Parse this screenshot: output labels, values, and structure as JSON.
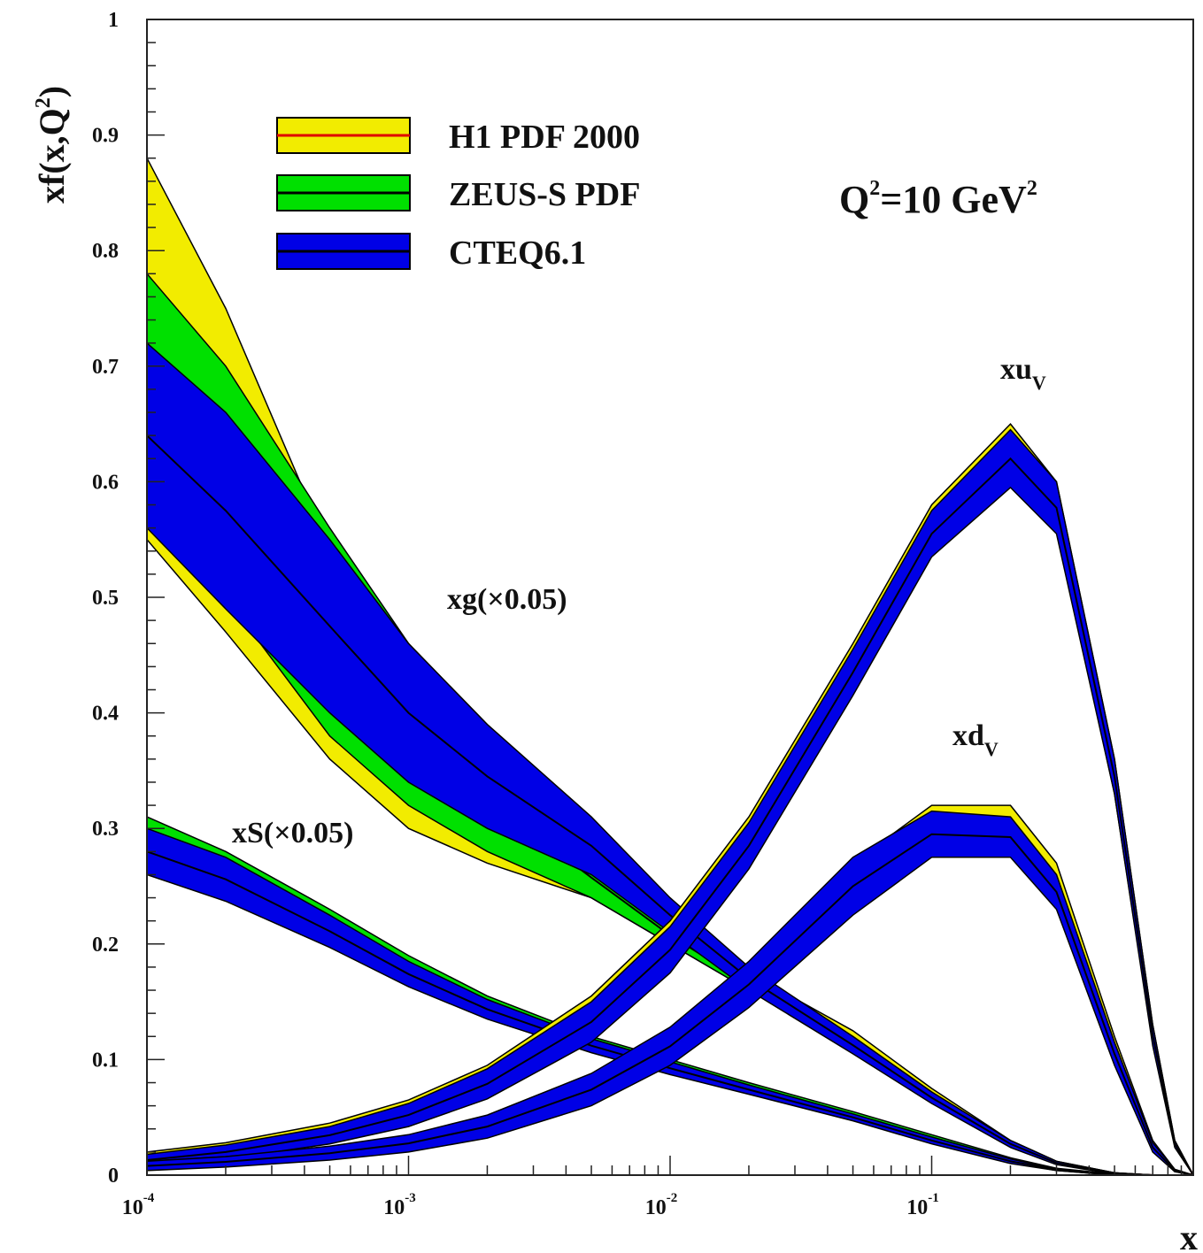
{
  "chart_data": {
    "type": "area",
    "ylabel": "xf(x,Q",
    "ylabel_sup": "2",
    "ylabel_close": ")",
    "xlabel": "x",
    "xscale": "log",
    "xlim": [
      0.0001,
      1
    ],
    "ylim": [
      0,
      1
    ],
    "y_ticks": [
      "0",
      "0.1",
      "0.2",
      "0.3",
      "0.4",
      "0.5",
      "0.6",
      "0.7",
      "0.8",
      "0.9",
      "1"
    ],
    "x_ticks": [
      {
        "base": "10",
        "exp": "-4"
      },
      {
        "base": "10",
        "exp": "-3"
      },
      {
        "base": "10",
        "exp": "-2"
      },
      {
        "base": "10",
        "exp": "-1"
      }
    ],
    "annotation": {
      "prefix": "Q",
      "sup1": "2",
      "mid": "=10 GeV",
      "sup2": "2"
    },
    "legend": [
      {
        "label": "H1 PDF 2000",
        "color": "#f2ec00",
        "line": "#e00000"
      },
      {
        "label": "ZEUS-S PDF",
        "color": "#00e000",
        "line": "#000000"
      },
      {
        "label": "CTEQ6.1",
        "color": "#0000e6",
        "line": "#000000"
      }
    ],
    "curve_labels": [
      {
        "text": "xg(×0.05)"
      },
      {
        "text": "xS(×0.05)"
      },
      {
        "text": "xu",
        "sub": "V"
      },
      {
        "text": "xd",
        "sub": "V"
      }
    ],
    "x": [
      0.0001,
      0.0002,
      0.0005,
      0.001,
      0.002,
      0.005,
      0.01,
      0.02,
      0.05,
      0.1,
      0.2,
      0.3,
      0.5,
      0.7,
      0.85,
      1
    ],
    "series": [
      {
        "curve": "xg(×0.05)",
        "band": "H1 PDF 2000",
        "upper": [
          0.88,
          0.75,
          0.54,
          0.44,
          0.35,
          0.27,
          0.22,
          0.175,
          0.125,
          0.075,
          0.03,
          0.012,
          0.002,
          0.0,
          0.0,
          0.0
        ],
        "lower": [
          0.55,
          0.47,
          0.36,
          0.3,
          0.27,
          0.24,
          0.2,
          0.16,
          0.11,
          0.065,
          0.025,
          0.01,
          0.001,
          0.0,
          0.0,
          0.0
        ]
      },
      {
        "curve": "xg(×0.05)",
        "band": "ZEUS-S PDF",
        "upper": [
          0.78,
          0.7,
          0.56,
          0.46,
          0.37,
          0.275,
          0.215,
          0.17,
          0.12,
          0.072,
          0.028,
          0.011,
          0.002,
          0.0,
          0.0,
          0.0
        ],
        "lower": [
          0.58,
          0.5,
          0.38,
          0.32,
          0.28,
          0.24,
          0.2,
          0.16,
          0.112,
          0.066,
          0.025,
          0.01,
          0.001,
          0.0,
          0.0,
          0.0
        ]
      },
      {
        "curve": "xg(×0.05)",
        "band": "CTEQ6.1",
        "upper": [
          0.72,
          0.66,
          0.55,
          0.46,
          0.39,
          0.31,
          0.24,
          0.18,
          0.12,
          0.072,
          0.03,
          0.012,
          0.002,
          0.0,
          0.0,
          0.0
        ],
        "lower": [
          0.56,
          0.49,
          0.4,
          0.34,
          0.3,
          0.26,
          0.21,
          0.16,
          0.105,
          0.062,
          0.024,
          0.009,
          0.001,
          0.0,
          0.0,
          0.0
        ]
      },
      {
        "curve": "xS(×0.05)",
        "band": "ZEUS-S PDF",
        "upper": [
          0.31,
          0.28,
          0.23,
          0.19,
          0.155,
          0.12,
          0.1,
          0.08,
          0.055,
          0.035,
          0.015,
          0.006,
          0.001,
          0.0,
          0.0,
          0.0
        ],
        "lower": [
          0.27,
          0.245,
          0.205,
          0.17,
          0.14,
          0.11,
          0.09,
          0.072,
          0.048,
          0.028,
          0.011,
          0.004,
          0.0,
          0.0,
          0.0,
          0.0
        ]
      },
      {
        "curve": "xS(×0.05)",
        "band": "CTEQ6.1",
        "upper": [
          0.3,
          0.275,
          0.225,
          0.185,
          0.152,
          0.118,
          0.098,
          0.078,
          0.053,
          0.033,
          0.014,
          0.005,
          0.001,
          0.0,
          0.0,
          0.0
        ],
        "lower": [
          0.26,
          0.237,
          0.197,
          0.163,
          0.135,
          0.106,
          0.087,
          0.07,
          0.047,
          0.027,
          0.01,
          0.004,
          0.0,
          0.0,
          0.0,
          0.0
        ]
      },
      {
        "curve": "xu_V",
        "band": "H1 PDF 2000",
        "upper": [
          0.02,
          0.028,
          0.045,
          0.065,
          0.095,
          0.155,
          0.22,
          0.31,
          0.46,
          0.58,
          0.65,
          0.6,
          0.36,
          0.13,
          0.03,
          0.0
        ],
        "lower": [
          0.01,
          0.016,
          0.03,
          0.045,
          0.07,
          0.12,
          0.18,
          0.27,
          0.42,
          0.54,
          0.6,
          0.56,
          0.33,
          0.115,
          0.025,
          0.0
        ]
      },
      {
        "curve": "xu_V",
        "band": "CTEQ6.1",
        "upper": [
          0.018,
          0.026,
          0.042,
          0.062,
          0.092,
          0.15,
          0.215,
          0.305,
          0.455,
          0.575,
          0.645,
          0.6,
          0.36,
          0.13,
          0.03,
          0.0
        ],
        "lower": [
          0.008,
          0.014,
          0.027,
          0.042,
          0.066,
          0.115,
          0.175,
          0.265,
          0.415,
          0.535,
          0.595,
          0.555,
          0.33,
          0.112,
          0.024,
          0.0
        ]
      },
      {
        "curve": "xd_V",
        "band": "H1 PDF 2000",
        "upper": [
          0.012,
          0.016,
          0.024,
          0.034,
          0.05,
          0.085,
          0.125,
          0.18,
          0.27,
          0.32,
          0.32,
          0.27,
          0.12,
          0.03,
          0.005,
          0.0
        ],
        "lower": [
          0.006,
          0.009,
          0.016,
          0.024,
          0.036,
          0.065,
          0.1,
          0.15,
          0.235,
          0.285,
          0.285,
          0.24,
          0.1,
          0.022,
          0.003,
          0.0
        ]
      },
      {
        "curve": "xd_V",
        "band": "CTEQ6.1",
        "upper": [
          0.012,
          0.016,
          0.025,
          0.035,
          0.052,
          0.088,
          0.128,
          0.185,
          0.275,
          0.315,
          0.31,
          0.26,
          0.115,
          0.028,
          0.005,
          0.0
        ],
        "lower": [
          0.004,
          0.007,
          0.013,
          0.02,
          0.032,
          0.06,
          0.095,
          0.145,
          0.225,
          0.275,
          0.275,
          0.23,
          0.095,
          0.02,
          0.003,
          0.0
        ]
      }
    ]
  }
}
